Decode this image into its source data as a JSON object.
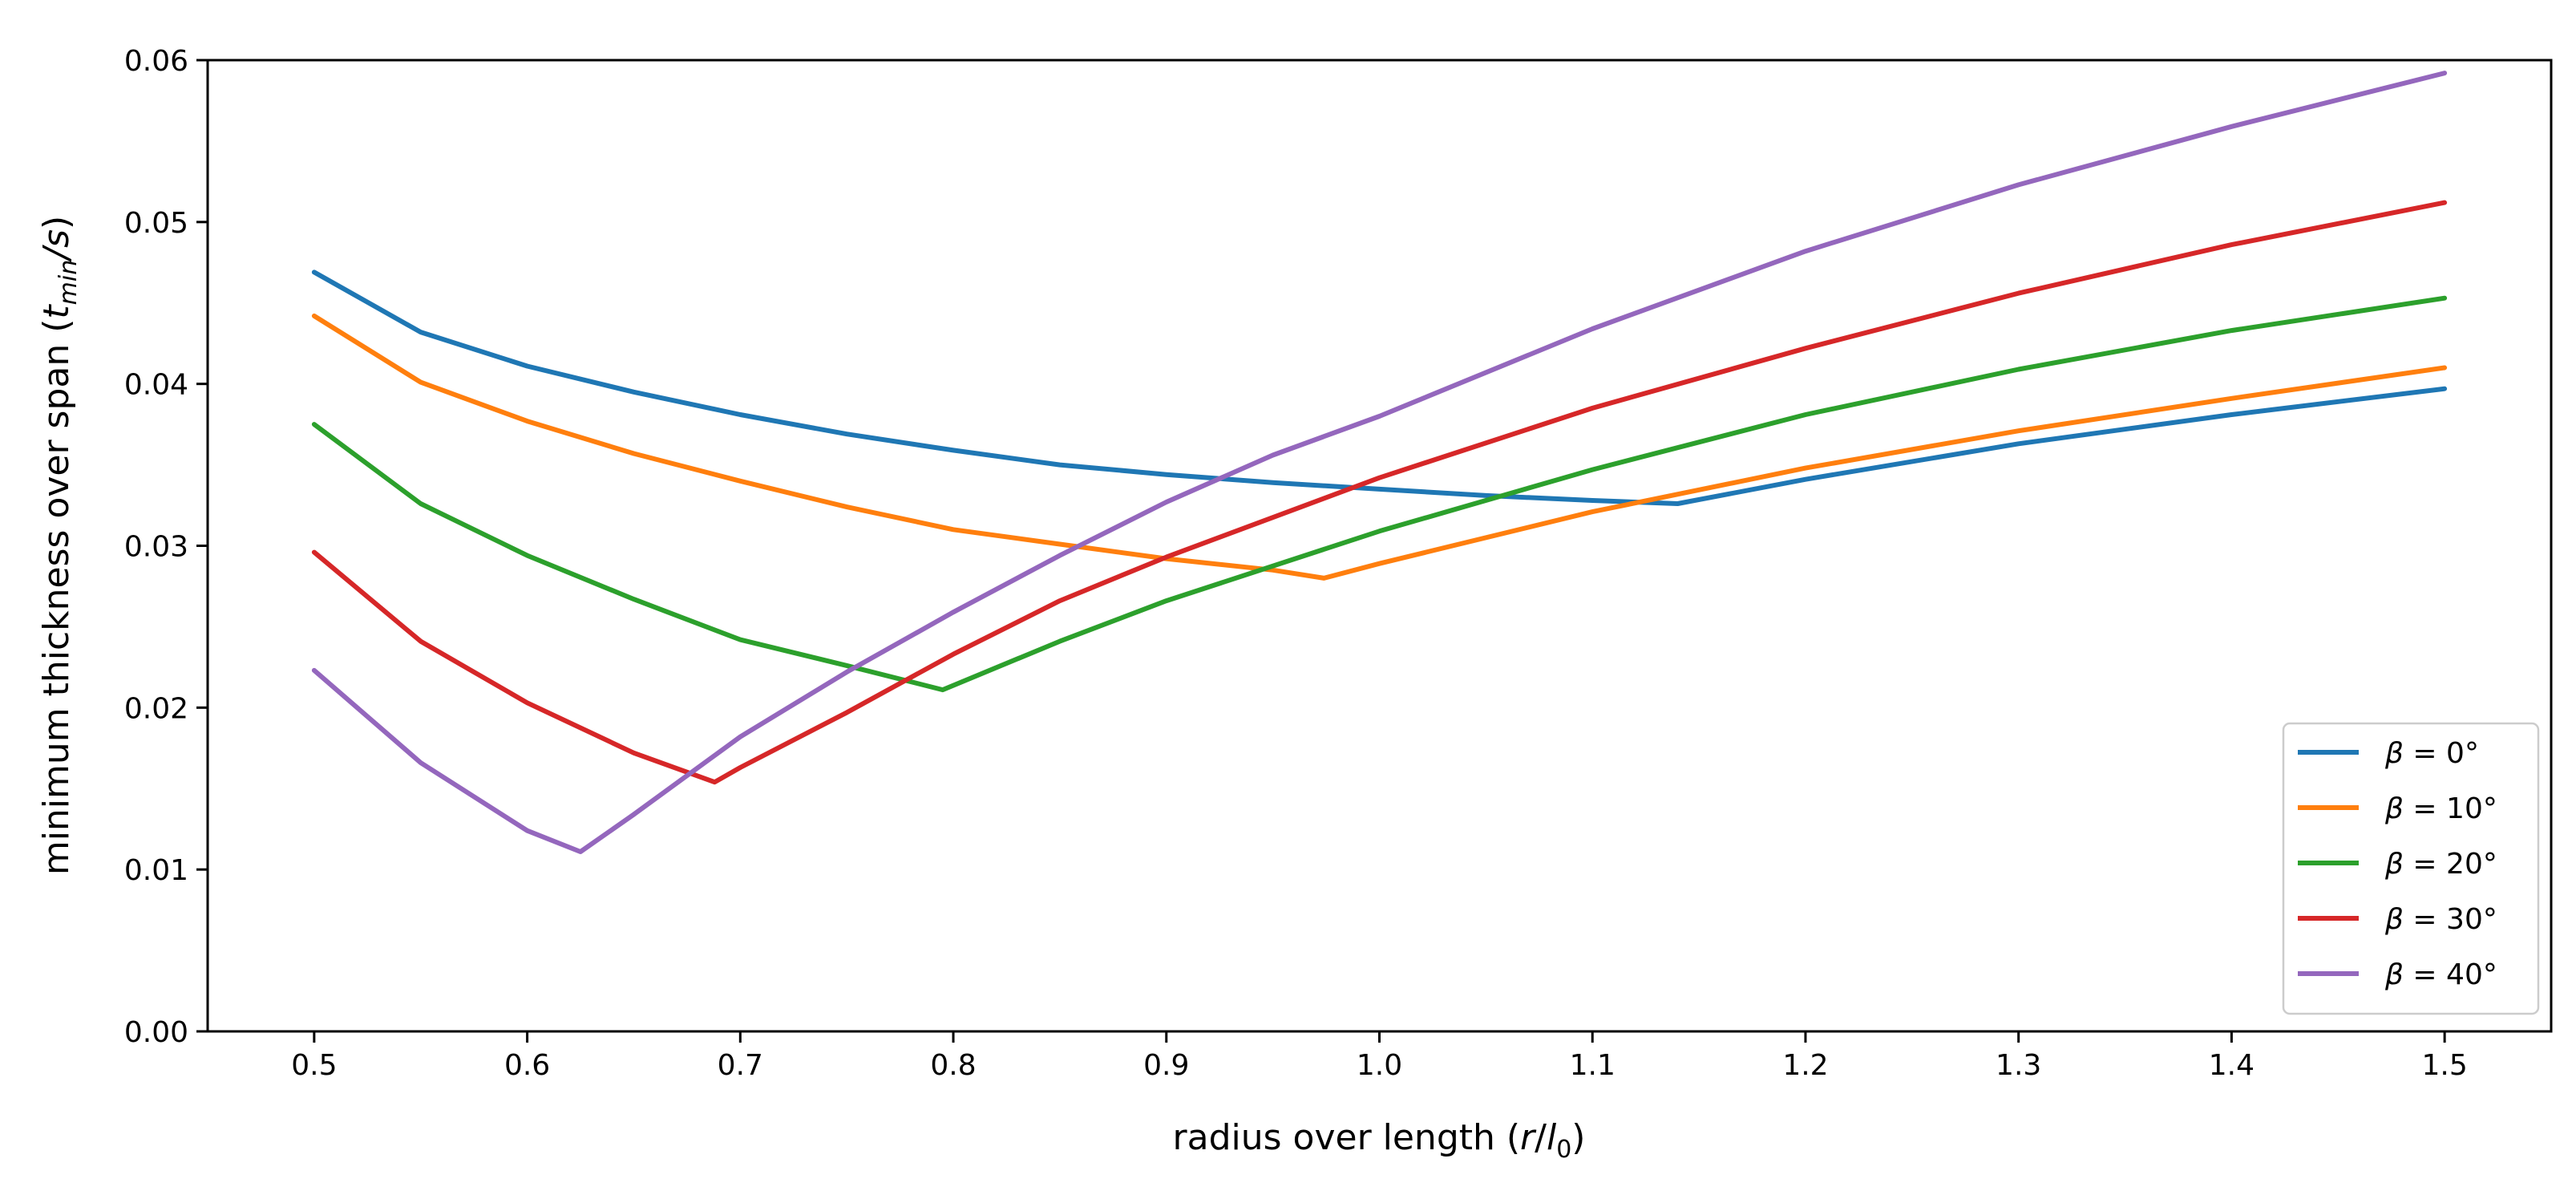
{
  "chart_data": {
    "type": "line",
    "title": "",
    "xlabel": "radius over length (r/l₀)",
    "ylabel": "minimum thickness over span (t_min/s)",
    "xlabel_parts": {
      "prefix": "radius over length (",
      "r": "r",
      "slash": "/",
      "l": "l",
      "sub": "0",
      "suffix": ")"
    },
    "ylabel_parts": {
      "prefix": "minimum thickness over span (",
      "t": "t",
      "sub": "min",
      "rest": "/s",
      "suffix": ")"
    },
    "xlim": [
      0.45,
      1.55
    ],
    "ylim": [
      0.0,
      0.06
    ],
    "xticks": [
      0.5,
      0.6,
      0.7,
      0.8,
      0.9,
      1.0,
      1.1,
      1.2,
      1.3,
      1.4,
      1.5
    ],
    "xtick_labels": [
      "0.5",
      "0.6",
      "0.7",
      "0.8",
      "0.9",
      "1.0",
      "1.1",
      "1.2",
      "1.3",
      "1.4",
      "1.5"
    ],
    "yticks": [
      0.0,
      0.01,
      0.02,
      0.03,
      0.04,
      0.05,
      0.06
    ],
    "ytick_labels": [
      "0.00",
      "0.01",
      "0.02",
      "0.03",
      "0.04",
      "0.05",
      "0.06"
    ],
    "grid": false,
    "legend_position": "lower-right",
    "series": [
      {
        "name": "β = 0°",
        "beta": "β",
        "value_text": " = 0°",
        "color": "#1f77b4",
        "x": [
          0.5,
          0.55,
          0.6,
          0.65,
          0.7,
          0.75,
          0.8,
          0.85,
          0.9,
          0.95,
          1.0,
          1.05,
          1.1,
          1.14,
          1.2,
          1.3,
          1.4,
          1.5
        ],
        "y": [
          0.0469,
          0.0432,
          0.0411,
          0.0395,
          0.0381,
          0.0369,
          0.0359,
          0.035,
          0.0344,
          0.0339,
          0.0335,
          0.0331,
          0.0328,
          0.0326,
          0.0341,
          0.0363,
          0.0381,
          0.0397
        ]
      },
      {
        "name": "β = 10°",
        "beta": "β",
        "value_text": " = 10°",
        "color": "#ff7f0e",
        "x": [
          0.5,
          0.55,
          0.6,
          0.65,
          0.7,
          0.75,
          0.8,
          0.85,
          0.9,
          0.95,
          0.974,
          1.0,
          1.1,
          1.2,
          1.3,
          1.4,
          1.5
        ],
        "y": [
          0.0442,
          0.0401,
          0.0377,
          0.0357,
          0.034,
          0.0324,
          0.031,
          0.0301,
          0.0292,
          0.0285,
          0.028,
          0.0289,
          0.0321,
          0.0348,
          0.0371,
          0.0391,
          0.041
        ]
      },
      {
        "name": "β = 20°",
        "beta": "β",
        "value_text": " = 20°",
        "color": "#2ca02c",
        "x": [
          0.5,
          0.55,
          0.6,
          0.65,
          0.7,
          0.75,
          0.795,
          0.85,
          0.9,
          1.0,
          1.1,
          1.2,
          1.3,
          1.4,
          1.5
        ],
        "y": [
          0.0375,
          0.0326,
          0.0294,
          0.0267,
          0.0242,
          0.0226,
          0.0211,
          0.0241,
          0.0266,
          0.0309,
          0.0347,
          0.0381,
          0.0409,
          0.0433,
          0.0453
        ]
      },
      {
        "name": "β = 30°",
        "beta": "β",
        "value_text": " = 30°",
        "color": "#d62728",
        "x": [
          0.5,
          0.55,
          0.6,
          0.65,
          0.688,
          0.7,
          0.75,
          0.8,
          0.85,
          0.9,
          1.0,
          1.1,
          1.2,
          1.3,
          1.4,
          1.5
        ],
        "y": [
          0.0296,
          0.0241,
          0.0203,
          0.0172,
          0.0154,
          0.0163,
          0.0197,
          0.0233,
          0.0266,
          0.0293,
          0.0342,
          0.0385,
          0.0422,
          0.0456,
          0.0486,
          0.0512
        ]
      },
      {
        "name": "β = 40°",
        "beta": "β",
        "value_text": " = 40°",
        "color": "#9467bd",
        "x": [
          0.5,
          0.55,
          0.6,
          0.625,
          0.65,
          0.7,
          0.75,
          0.8,
          0.85,
          0.9,
          0.95,
          1.0,
          1.1,
          1.2,
          1.3,
          1.4,
          1.5
        ],
        "y": [
          0.0223,
          0.0166,
          0.0124,
          0.0111,
          0.0134,
          0.0182,
          0.0222,
          0.0259,
          0.0294,
          0.0327,
          0.0356,
          0.038,
          0.0434,
          0.0482,
          0.0523,
          0.0559,
          0.0592
        ]
      }
    ]
  }
}
